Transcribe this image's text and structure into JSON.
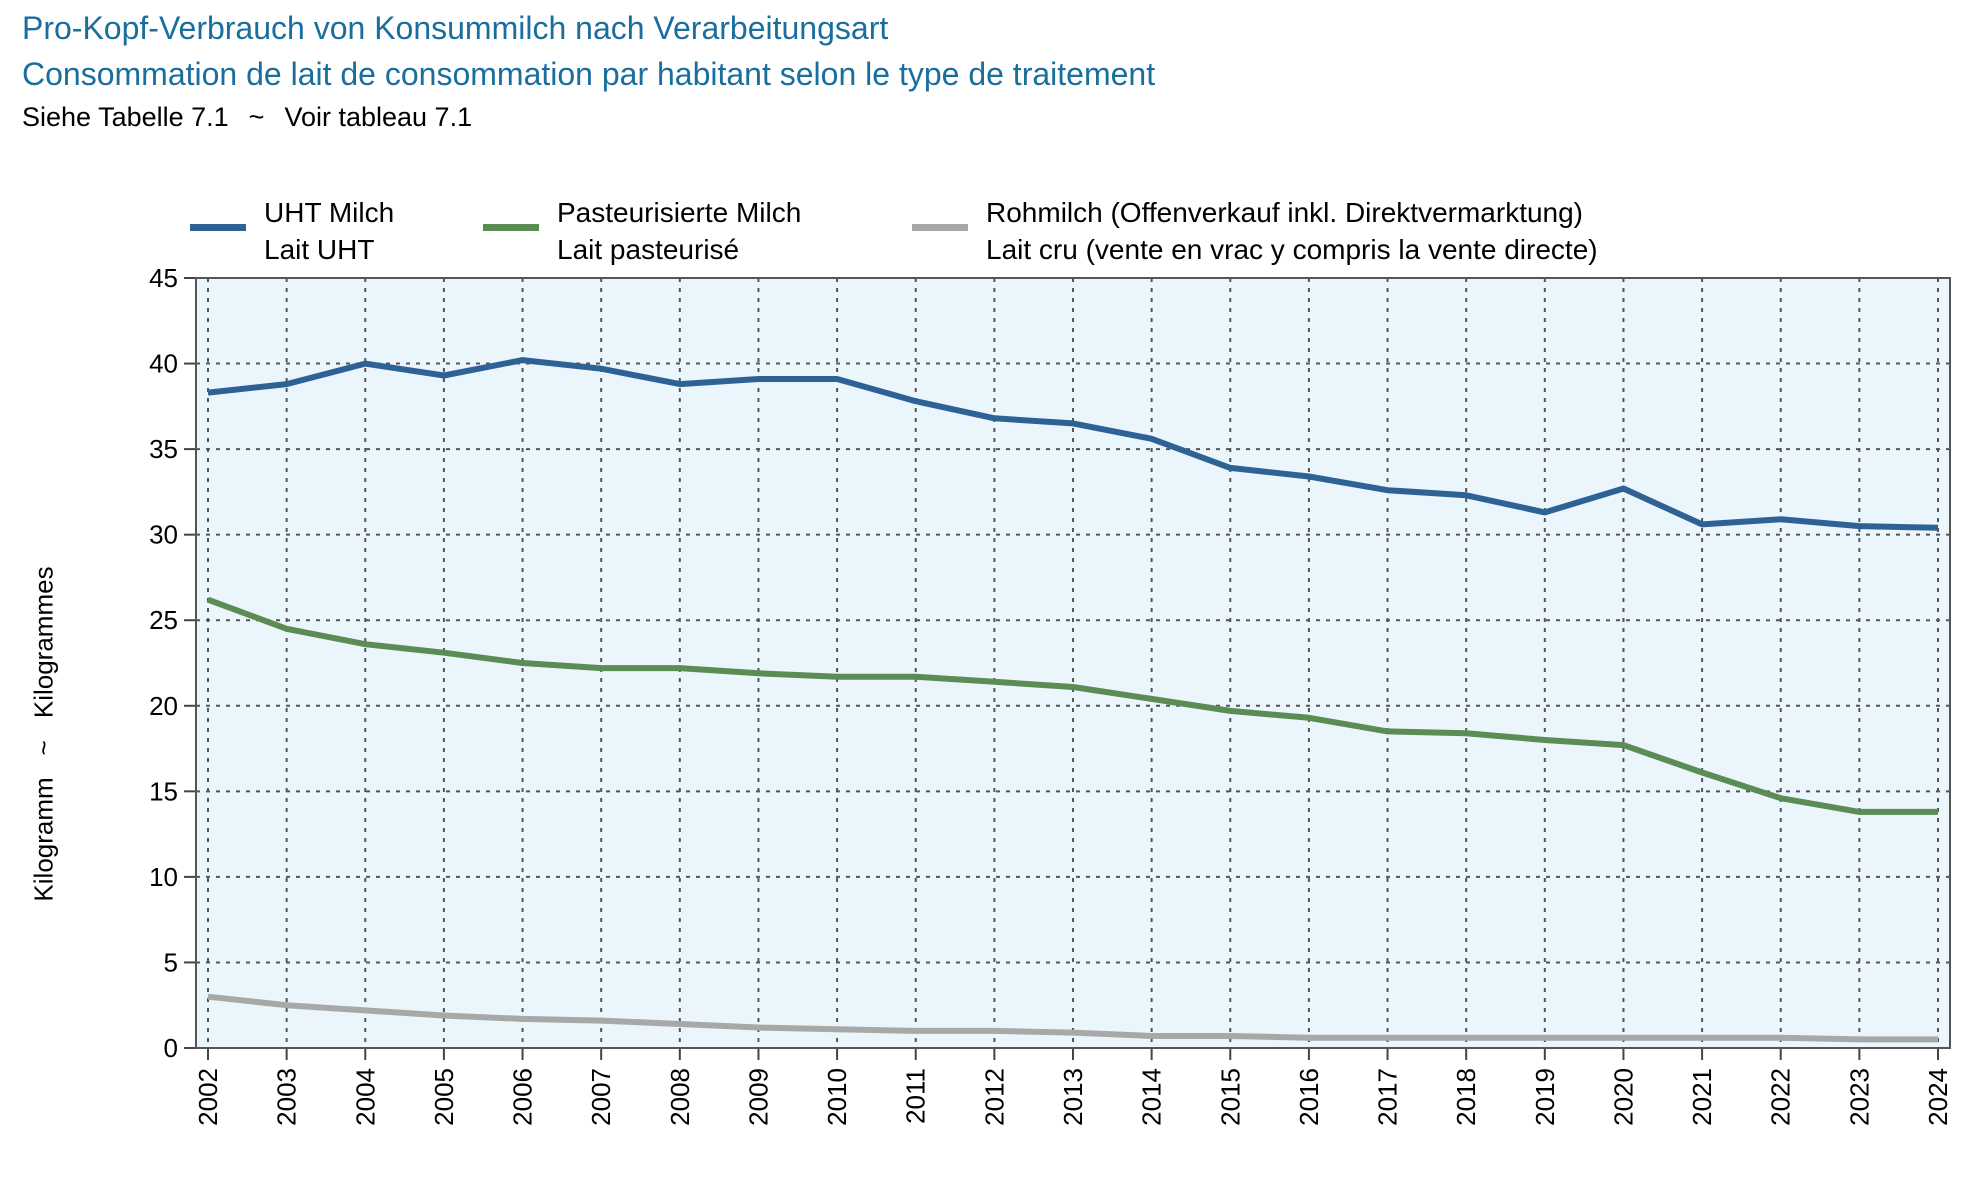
{
  "header": {
    "title_de": "Pro-Kopf-Verbrauch von Konsummilch nach Verarbeitungsart",
    "title_fr": "Consommation de lait de consommation par habitant selon le type de traitement",
    "subtitle_de": "Siehe Tabelle 7.1",
    "subtitle_sep": "~",
    "subtitle_fr": "Voir tableau 7.1"
  },
  "axis": {
    "ylabel_de": "Kilogramm",
    "ylabel_sep": "~",
    "ylabel_fr": "Kilogrammes"
  },
  "colors": {
    "title": "#1a6e9e",
    "plot_background": "#eaf5fc",
    "grid": "#555555",
    "uht": "#2e6295",
    "pasteurised": "#5b8c53",
    "raw": "#a8a8a8"
  },
  "legend": [
    {
      "line1": "UHT Milch",
      "line2": "Lait UHT",
      "color": "#2e6295"
    },
    {
      "line1": "Pasteurisierte Milch",
      "line2": "Lait pasteurisé",
      "color": "#5b8c53"
    },
    {
      "line1": "Rohmilch (Offenverkauf inkl. Direktvermarktung)",
      "line2": "Lait cru (vente en vrac y compris la vente directe)",
      "color": "#a8a8a8"
    }
  ],
  "chart_data": {
    "type": "line",
    "title": "Pro-Kopf-Verbrauch von Konsummilch nach Verarbeitungsart",
    "subtitle": "Consommation de lait de consommation par habitant selon le type de traitement",
    "ylabel": "Kilogramm ~ Kilogrammes",
    "xlabel": "",
    "ylim": [
      0,
      45
    ],
    "yticks": [
      0,
      5,
      10,
      15,
      20,
      25,
      30,
      35,
      40,
      45
    ],
    "grid": true,
    "legend_position": "top",
    "x": [
      "2002",
      "2003",
      "2004",
      "2005",
      "2006",
      "2007",
      "2008",
      "2009",
      "2010",
      "2011",
      "2012",
      "2013",
      "2014",
      "2015",
      "2016",
      "2017",
      "2018",
      "2019",
      "2020",
      "2021",
      "2022",
      "2023",
      "2024"
    ],
    "series": [
      {
        "name": "UHT Milch / Lait UHT",
        "values": [
          38.3,
          38.8,
          40.0,
          39.3,
          40.2,
          39.7,
          38.8,
          39.1,
          39.1,
          37.8,
          36.8,
          36.5,
          35.6,
          33.9,
          33.4,
          32.6,
          32.3,
          31.3,
          32.7,
          30.6,
          30.9,
          30.5,
          30.4
        ]
      },
      {
        "name": "Pasteurisierte Milch / Lait pasteurisé",
        "values": [
          26.2,
          24.5,
          23.6,
          23.1,
          22.5,
          22.2,
          22.2,
          21.9,
          21.7,
          21.7,
          21.4,
          21.1,
          20.4,
          19.7,
          19.3,
          18.5,
          18.4,
          18.0,
          17.7,
          16.1,
          14.6,
          13.8,
          13.8
        ]
      },
      {
        "name": "Rohmilch (Offenverkauf inkl. Direktvermarktung) / Lait cru (vente en vrac y compris la vente directe)",
        "values": [
          3.0,
          2.5,
          2.2,
          1.9,
          1.7,
          1.6,
          1.4,
          1.2,
          1.1,
          1.0,
          1.0,
          0.9,
          0.7,
          0.7,
          0.6,
          0.6,
          0.6,
          0.6,
          0.6,
          0.6,
          0.6,
          0.5,
          0.5
        ]
      }
    ]
  }
}
